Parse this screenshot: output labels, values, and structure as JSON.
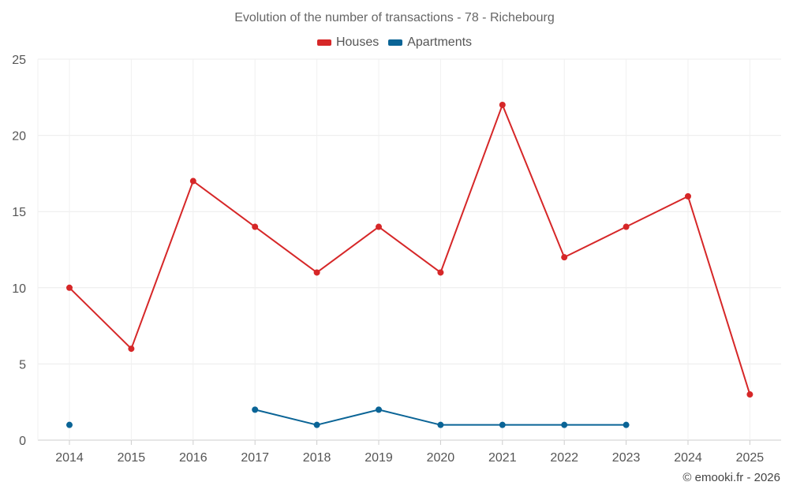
{
  "chart_data": {
    "type": "line",
    "title": "Evolution of the number of transactions - 78 - Richebourg",
    "xlabel": "",
    "ylabel": "",
    "categories": [
      "2014",
      "2015",
      "2016",
      "2017",
      "2018",
      "2019",
      "2020",
      "2021",
      "2022",
      "2023",
      "2024",
      "2025"
    ],
    "yticks": [
      0,
      5,
      10,
      15,
      20,
      25
    ],
    "ylim": [
      0,
      25
    ],
    "grid": true,
    "legend_position": "top-center",
    "series": [
      {
        "name": "Houses",
        "color": "#d62728",
        "values": [
          10,
          6,
          17,
          14,
          11,
          14,
          11,
          22,
          12,
          14,
          16,
          3
        ]
      },
      {
        "name": "Apartments",
        "color": "#0a6496",
        "values": [
          1,
          null,
          null,
          2,
          1,
          2,
          1,
          1,
          1,
          1,
          null,
          null
        ]
      }
    ]
  },
  "credit": "© emooki.fr - 2026"
}
